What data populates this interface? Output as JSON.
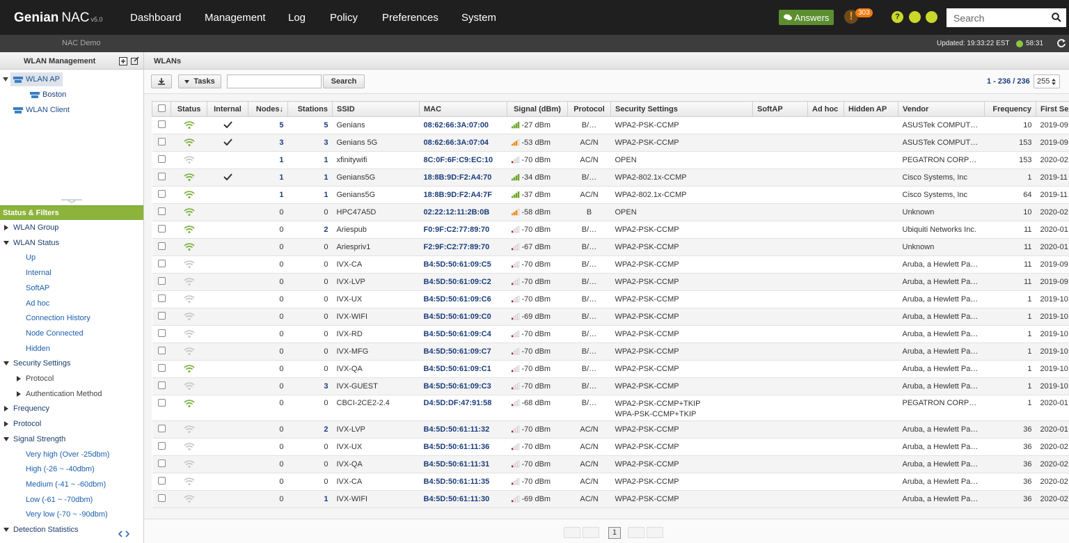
{
  "header": {
    "brand": "Genian",
    "product": "NAC",
    "version": "v5.0",
    "nav": [
      "Dashboard",
      "Management",
      "Log",
      "Policy",
      "Preferences",
      "System"
    ],
    "answers": "Answers",
    "alert_count": "303",
    "search_placeholder": "Search"
  },
  "subheader": {
    "site": "NAC Demo",
    "updated": "Updated: 19:33:22 EST",
    "timer": "58:31"
  },
  "sidebar": {
    "title": "WLAN Management",
    "tree": [
      {
        "label": "WLAN AP",
        "level": 0,
        "selected": true,
        "toggle": "expanded"
      },
      {
        "label": "Boston",
        "level": 1
      },
      {
        "label": "WLAN Client",
        "level": 0
      }
    ],
    "filters_title": "Status & Filters",
    "filters": [
      {
        "label": "WLAN Group",
        "level": 0,
        "toggle": "collapsed"
      },
      {
        "label": "WLAN Status",
        "level": 0,
        "toggle": "expanded"
      },
      {
        "label": "Up",
        "level": 1
      },
      {
        "label": "Internal",
        "level": 1
      },
      {
        "label": "SoftAP",
        "level": 1
      },
      {
        "label": "Ad hoc",
        "level": 1
      },
      {
        "label": "Connection History",
        "level": 1
      },
      {
        "label": "Node Connected",
        "level": 1
      },
      {
        "label": "Hidden",
        "level": 1
      },
      {
        "label": "Security Settings",
        "level": 0,
        "toggle": "expanded"
      },
      {
        "label": "Protocol",
        "level": 1,
        "toggle": "collapsed"
      },
      {
        "label": "Authentication Method",
        "level": 1,
        "toggle": "collapsed"
      },
      {
        "label": "Frequency",
        "level": 0,
        "toggle": "collapsed"
      },
      {
        "label": "Protocol",
        "level": 0,
        "toggle": "collapsed"
      },
      {
        "label": "Signal Strength",
        "level": 0,
        "toggle": "expanded"
      },
      {
        "label": "Very high (Over -25dbm)",
        "level": 1
      },
      {
        "label": "High (-26 ~ -40dbm)",
        "level": 1
      },
      {
        "label": "Medium (-41 ~ -60dbm)",
        "level": 1
      },
      {
        "label": "Low (-61 ~ -70dbm)",
        "level": 1
      },
      {
        "label": "Very low (-70 ~ -90dbm)",
        "level": 1
      },
      {
        "label": "Detection Statistics",
        "level": 0,
        "toggle": "expanded"
      }
    ]
  },
  "main": {
    "title": "WLANs",
    "tasks": "Tasks",
    "search_button": "Search",
    "range": "1 - 236 / 236",
    "page_size": "255",
    "page": "1",
    "columns": [
      "Status",
      "Internal",
      "Nodes↓",
      "Stations",
      "SSID",
      "MAC",
      "Signal (dBm)",
      "Protocol",
      "Security Settings",
      "SoftAP",
      "Ad hoc",
      "Hidden AP",
      "Vendor",
      "Frequency",
      "First Se"
    ],
    "rows": [
      {
        "up": true,
        "internal": true,
        "nodes": 5,
        "stations": 5,
        "ssid": "Genians",
        "mac": "08:62:66:3A:07:00",
        "signal": "-27 dBm",
        "signal_level": "high",
        "protocol": "B/…",
        "security": [
          "WPA2-PSK-CCMP"
        ],
        "vendor": "ASUSTek COMPUT…",
        "frequency": 10,
        "first_seen": "2019-09"
      },
      {
        "up": true,
        "internal": true,
        "nodes": 3,
        "stations": 3,
        "ssid": "Genians 5G",
        "mac": "08:62:66:3A:07:04",
        "signal": "-53 dBm",
        "signal_level": "medium",
        "protocol": "AC/N",
        "security": [
          "WPA2-PSK-CCMP"
        ],
        "vendor": "ASUSTek COMPUT…",
        "frequency": 153,
        "first_seen": "2019-09"
      },
      {
        "up": false,
        "internal": false,
        "nodes": 1,
        "stations": 1,
        "ssid": "xfinitywifi",
        "mac": "8C:0F:6F:C9:EC:10",
        "signal": "-70 dBm",
        "signal_level": "low",
        "protocol": "AC/N",
        "security": [
          "OPEN"
        ],
        "vendor": "PEGATRON CORP…",
        "frequency": 153,
        "first_seen": "2020-02"
      },
      {
        "up": true,
        "internal": true,
        "nodes": 1,
        "stations": 1,
        "ssid": "Genians5G",
        "mac": "18:8B:9D:F2:A4:70",
        "signal": "-34 dBm",
        "signal_level": "high",
        "protocol": "B/…",
        "security": [
          "WPA2-802.1x-CCMP"
        ],
        "vendor": "Cisco Systems, Inc",
        "frequency": 1,
        "first_seen": "2019-11"
      },
      {
        "up": true,
        "internal": false,
        "nodes": 1,
        "stations": 1,
        "ssid": "Genians5G",
        "mac": "18:8B:9D:F2:A4:7F",
        "signal": "-37 dBm",
        "signal_level": "high",
        "protocol": "AC/N",
        "security": [
          "WPA2-802.1x-CCMP"
        ],
        "vendor": "Cisco Systems, Inc",
        "frequency": 64,
        "first_seen": "2019-11"
      },
      {
        "up": true,
        "internal": false,
        "nodes": 0,
        "stations": 0,
        "ssid": "HPC47A5D",
        "mac": "02:22:12:11:2B:0B",
        "signal": "-58 dBm",
        "signal_level": "medium",
        "protocol": "B",
        "security": [
          "OPEN"
        ],
        "vendor": "Unknown",
        "frequency": 10,
        "first_seen": "2020-02"
      },
      {
        "up": true,
        "internal": false,
        "nodes": 0,
        "stations": 2,
        "ssid": "Ariespub",
        "mac": "F0:9F:C2:77:89:70",
        "signal": "-70 dBm",
        "signal_level": "low",
        "protocol": "B/…",
        "security": [
          "WPA2-PSK-CCMP"
        ],
        "vendor": "Ubiquiti Networks Inc.",
        "frequency": 11,
        "first_seen": "2020-01"
      },
      {
        "up": true,
        "internal": false,
        "nodes": 0,
        "stations": 0,
        "ssid": "Ariespriv1",
        "mac": "F2:9F:C2:77:89:70",
        "signal": "-67 dBm",
        "signal_level": "low",
        "protocol": "B/…",
        "security": [
          "WPA2-PSK-CCMP"
        ],
        "vendor": "Unknown",
        "frequency": 11,
        "first_seen": "2020-01"
      },
      {
        "up": false,
        "internal": false,
        "nodes": 0,
        "stations": 0,
        "ssid": "IVX-CA",
        "mac": "B4:5D:50:61:09:C5",
        "signal": "-70 dBm",
        "signal_level": "low",
        "protocol": "B/…",
        "security": [
          "WPA2-PSK-CCMP"
        ],
        "vendor": "Aruba, a Hewlett Pa…",
        "frequency": 11,
        "first_seen": "2019-09"
      },
      {
        "up": false,
        "internal": false,
        "nodes": 0,
        "stations": 0,
        "ssid": "IVX-LVP",
        "mac": "B4:5D:50:61:09:C2",
        "signal": "-70 dBm",
        "signal_level": "low",
        "protocol": "B/…",
        "security": [
          "WPA2-PSK-CCMP"
        ],
        "vendor": "Aruba, a Hewlett Pa…",
        "frequency": 11,
        "first_seen": "2019-09"
      },
      {
        "up": false,
        "internal": false,
        "nodes": 0,
        "stations": 0,
        "ssid": "IVX-UX",
        "mac": "B4:5D:50:61:09:C6",
        "signal": "-70 dBm",
        "signal_level": "low",
        "protocol": "B/…",
        "security": [
          "WPA2-PSK-CCMP"
        ],
        "vendor": "Aruba, a Hewlett Pa…",
        "frequency": 1,
        "first_seen": "2019-10"
      },
      {
        "up": false,
        "internal": false,
        "nodes": 0,
        "stations": 0,
        "ssid": "IVX-WIFI",
        "mac": "B4:5D:50:61:09:C0",
        "signal": "-69 dBm",
        "signal_level": "low",
        "protocol": "B/…",
        "security": [
          "WPA2-PSK-CCMP"
        ],
        "vendor": "Aruba, a Hewlett Pa…",
        "frequency": 1,
        "first_seen": "2019-10"
      },
      {
        "up": false,
        "internal": false,
        "nodes": 0,
        "stations": 0,
        "ssid": "IVX-RD",
        "mac": "B4:5D:50:61:09:C4",
        "signal": "-70 dBm",
        "signal_level": "low",
        "protocol": "B/…",
        "security": [
          "WPA2-PSK-CCMP"
        ],
        "vendor": "Aruba, a Hewlett Pa…",
        "frequency": 1,
        "first_seen": "2019-10"
      },
      {
        "up": false,
        "internal": false,
        "nodes": 0,
        "stations": 0,
        "ssid": "IVX-MFG",
        "mac": "B4:5D:50:61:09:C7",
        "signal": "-70 dBm",
        "signal_level": "low",
        "protocol": "B/…",
        "security": [
          "WPA2-PSK-CCMP"
        ],
        "vendor": "Aruba, a Hewlett Pa…",
        "frequency": 1,
        "first_seen": "2019-10"
      },
      {
        "up": true,
        "internal": false,
        "nodes": 0,
        "stations": 0,
        "ssid": "IVX-QA",
        "mac": "B4:5D:50:61:09:C1",
        "signal": "-70 dBm",
        "signal_level": "low",
        "protocol": "B/…",
        "security": [
          "WPA2-PSK-CCMP"
        ],
        "vendor": "Aruba, a Hewlett Pa…",
        "frequency": 1,
        "first_seen": "2019-10"
      },
      {
        "up": false,
        "internal": false,
        "nodes": 0,
        "stations": 3,
        "ssid": "IVX-GUEST",
        "mac": "B4:5D:50:61:09:C3",
        "signal": "-70 dBm",
        "signal_level": "low",
        "protocol": "B/…",
        "security": [
          "WPA2-PSK-CCMP"
        ],
        "vendor": "Aruba, a Hewlett Pa…",
        "frequency": 1,
        "first_seen": "2019-10"
      },
      {
        "up": true,
        "internal": false,
        "nodes": 0,
        "stations": 0,
        "ssid": "CBCI-2CE2-2.4",
        "mac": "D4:5D:DF:47:91:58",
        "signal": "-68 dBm",
        "signal_level": "low",
        "protocol": "B/…",
        "security": [
          "WPA2-PSK-CCMP+TKIP",
          "WPA-PSK-CCMP+TKIP"
        ],
        "vendor": "PEGATRON CORP…",
        "frequency": 1,
        "first_seen": "2020-01"
      },
      {
        "up": false,
        "internal": false,
        "nodes": 0,
        "stations": 2,
        "ssid": "IVX-LVP",
        "mac": "B4:5D:50:61:11:32",
        "signal": "-70 dBm",
        "signal_level": "low",
        "protocol": "AC/N",
        "security": [
          "WPA2-PSK-CCMP"
        ],
        "vendor": "Aruba, a Hewlett Pa…",
        "frequency": 36,
        "first_seen": "2020-01"
      },
      {
        "up": false,
        "internal": false,
        "nodes": 0,
        "stations": 0,
        "ssid": "IVX-UX",
        "mac": "B4:5D:50:61:11:36",
        "signal": "-70 dBm",
        "signal_level": "low",
        "protocol": "AC/N",
        "security": [
          "WPA2-PSK-CCMP"
        ],
        "vendor": "Aruba, a Hewlett Pa…",
        "frequency": 36,
        "first_seen": "2020-02"
      },
      {
        "up": false,
        "internal": false,
        "nodes": 0,
        "stations": 0,
        "ssid": "IVX-QA",
        "mac": "B4:5D:50:61:11:31",
        "signal": "-70 dBm",
        "signal_level": "low",
        "protocol": "AC/N",
        "security": [
          "WPA2-PSK-CCMP"
        ],
        "vendor": "Aruba, a Hewlett Pa…",
        "frequency": 36,
        "first_seen": "2020-02"
      },
      {
        "up": false,
        "internal": false,
        "nodes": 0,
        "stations": 0,
        "ssid": "IVX-CA",
        "mac": "B4:5D:50:61:11:35",
        "signal": "-70 dBm",
        "signal_level": "low",
        "protocol": "AC/N",
        "security": [
          "WPA2-PSK-CCMP"
        ],
        "vendor": "Aruba, a Hewlett Pa…",
        "frequency": 36,
        "first_seen": "2020-02"
      },
      {
        "up": false,
        "internal": false,
        "nodes": 0,
        "stations": 1,
        "ssid": "IVX-WIFI",
        "mac": "B4:5D:50:61:11:30",
        "signal": "-69 dBm",
        "signal_level": "low",
        "protocol": "AC/N",
        "security": [
          "WPA2-PSK-CCMP"
        ],
        "vendor": "Aruba, a Hewlett Pa…",
        "frequency": 36,
        "first_seen": "2020-02"
      }
    ]
  }
}
